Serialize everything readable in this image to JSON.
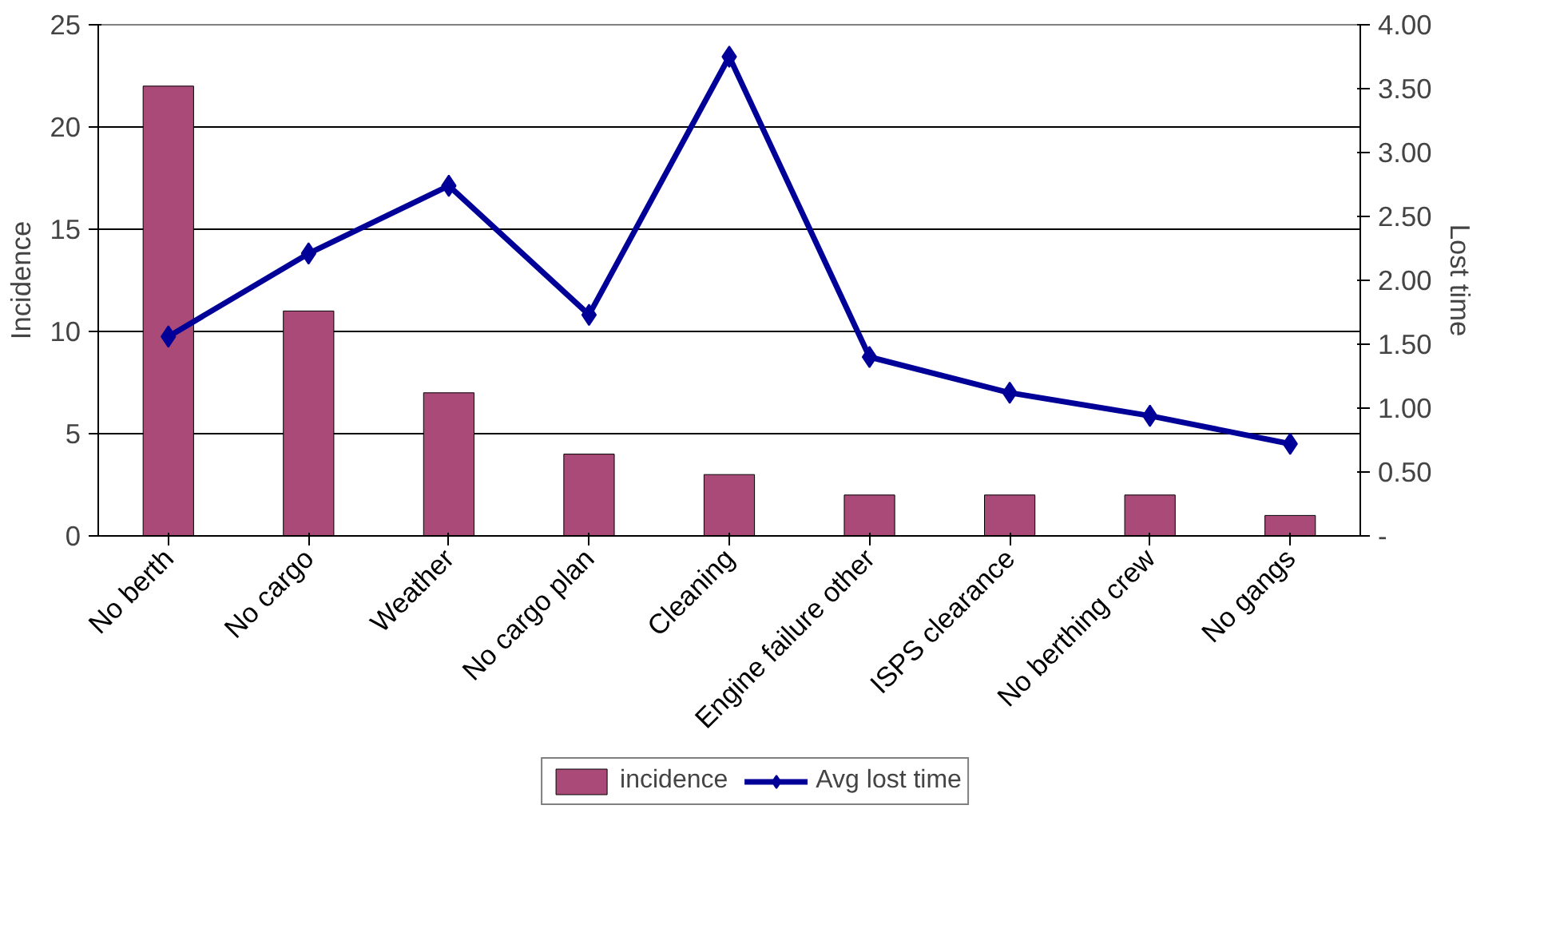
{
  "chart_data": {
    "type": "bar",
    "categories": [
      "No berth",
      "No cargo",
      "Weather",
      "No cargo plan",
      "Cleaning",
      "Engine failure other",
      "ISPS clearance",
      "No berthing crew",
      "No gangs"
    ],
    "series": [
      {
        "name": "incidence",
        "type": "bar",
        "color": "#a94a78",
        "values": [
          22,
          11,
          7,
          4,
          3,
          2,
          2,
          2,
          1
        ]
      },
      {
        "name": "Avg lost time",
        "type": "line",
        "axis": "y2",
        "color": "#000099",
        "marker": "diamond",
        "values": [
          1.56,
          2.21,
          2.74,
          1.73,
          3.75,
          1.4,
          1.12,
          0.94,
          0.72
        ]
      }
    ],
    "ylabel": "Incidence",
    "y2label": "Lost time",
    "ylim": [
      0,
      25
    ],
    "yticks": [
      0,
      5,
      10,
      15,
      20,
      25
    ],
    "y2lim": [
      0,
      4
    ],
    "y2ticks": [
      {
        "value": 0,
        "label": "-"
      },
      {
        "value": 0.5,
        "label": "0.50"
      },
      {
        "value": 1,
        "label": "1.00"
      },
      {
        "value": 1.5,
        "label": "1.50"
      },
      {
        "value": 2,
        "label": "2.00"
      },
      {
        "value": 2.5,
        "label": "2.50"
      },
      {
        "value": 3,
        "label": "3.00"
      },
      {
        "value": 3.5,
        "label": "3.50"
      },
      {
        "value": 4,
        "label": "4.00"
      }
    ],
    "grid": "y",
    "legend": "bottom"
  }
}
